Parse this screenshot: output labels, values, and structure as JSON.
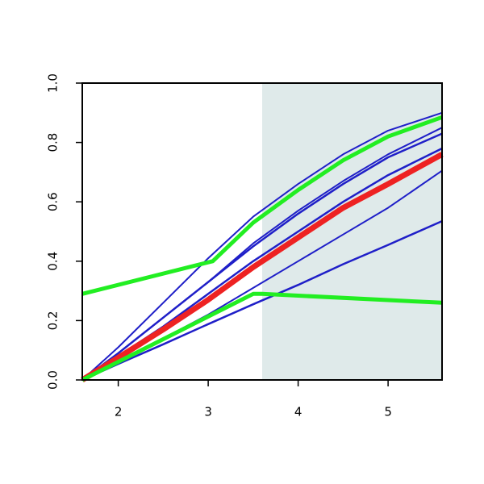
{
  "chart_data": {
    "type": "line",
    "xlim": [
      1.6,
      5.6
    ],
    "ylim": [
      0,
      1
    ],
    "xticks": [
      2,
      3,
      4,
      5
    ],
    "yticks": [
      {
        "value": 0,
        "label": "0.0"
      },
      0.2,
      0.4,
      0.6,
      0.8,
      {
        "value": 1,
        "label": "1.0"
      }
    ],
    "shaded_region": [
      3.6,
      5.6
    ],
    "shade_color": "#dfeaea",
    "series": [
      {
        "color": "#1f1fc8",
        "width": 2,
        "x": [
          1.6,
          2,
          2.5,
          3,
          3.5,
          4,
          4.5,
          5,
          5.6
        ],
        "values": [
          0,
          0.11,
          0.26,
          0.41,
          0.55,
          0.66,
          0.76,
          0.84,
          0.9
        ]
      },
      {
        "color": "#1f1fc8",
        "width": 2,
        "x": [
          1.6,
          2,
          2.5,
          3,
          3.5,
          4,
          4.5,
          5,
          5.6
        ],
        "values": [
          0,
          0.09,
          0.21,
          0.33,
          0.46,
          0.57,
          0.67,
          0.76,
          0.85
        ]
      },
      {
        "color": "#1f1fc8",
        "width": 2.5,
        "x": [
          1.6,
          2,
          2.5,
          3,
          3.5,
          4,
          4.5,
          5,
          5.6
        ],
        "values": [
          0,
          0.09,
          0.21,
          0.33,
          0.45,
          0.56,
          0.66,
          0.75,
          0.83
        ]
      },
      {
        "color": "#1f1fc8",
        "width": 2.5,
        "x": [
          1.6,
          2,
          2.5,
          3,
          3.5,
          4,
          4.5,
          5,
          5.6
        ],
        "values": [
          0,
          0.08,
          0.18,
          0.29,
          0.4,
          0.5,
          0.6,
          0.69,
          0.78
        ]
      },
      {
        "color": "#1f1fc8",
        "width": 2,
        "x": [
          1.6,
          2,
          2.5,
          3,
          3.5,
          4,
          4.5,
          5,
          5.6
        ],
        "values": [
          0,
          0.06,
          0.14,
          0.22,
          0.31,
          0.4,
          0.49,
          0.58,
          0.705
        ]
      },
      {
        "color": "#1f1fc8",
        "width": 2.5,
        "x": [
          1.6,
          2,
          2.5,
          3,
          3.5,
          4,
          4.5,
          5,
          5.6
        ],
        "values": [
          0,
          0.054,
          0.12,
          0.188,
          0.255,
          0.32,
          0.39,
          0.455,
          0.535
        ]
      },
      {
        "color": "#ee2222",
        "width": 7,
        "x": [
          1.6,
          2,
          2.5,
          3,
          3.5,
          4,
          4.5,
          5,
          5.6
        ],
        "values": [
          0,
          0.075,
          0.17,
          0.27,
          0.38,
          0.48,
          0.58,
          0.66,
          0.76
        ]
      },
      {
        "color": "#22ee22",
        "width": 5,
        "x": [
          1.6,
          3.05,
          3.5,
          4,
          4.5,
          5,
          5.6
        ],
        "values": [
          0.29,
          0.4,
          0.53,
          0.64,
          0.74,
          0.82,
          0.885
        ]
      },
      {
        "color": "#22ee22",
        "width": 5,
        "x": [
          1.6,
          3.5,
          3.6,
          5.6
        ],
        "values": [
          0,
          0.29,
          0.29,
          0.26
        ]
      }
    ]
  }
}
